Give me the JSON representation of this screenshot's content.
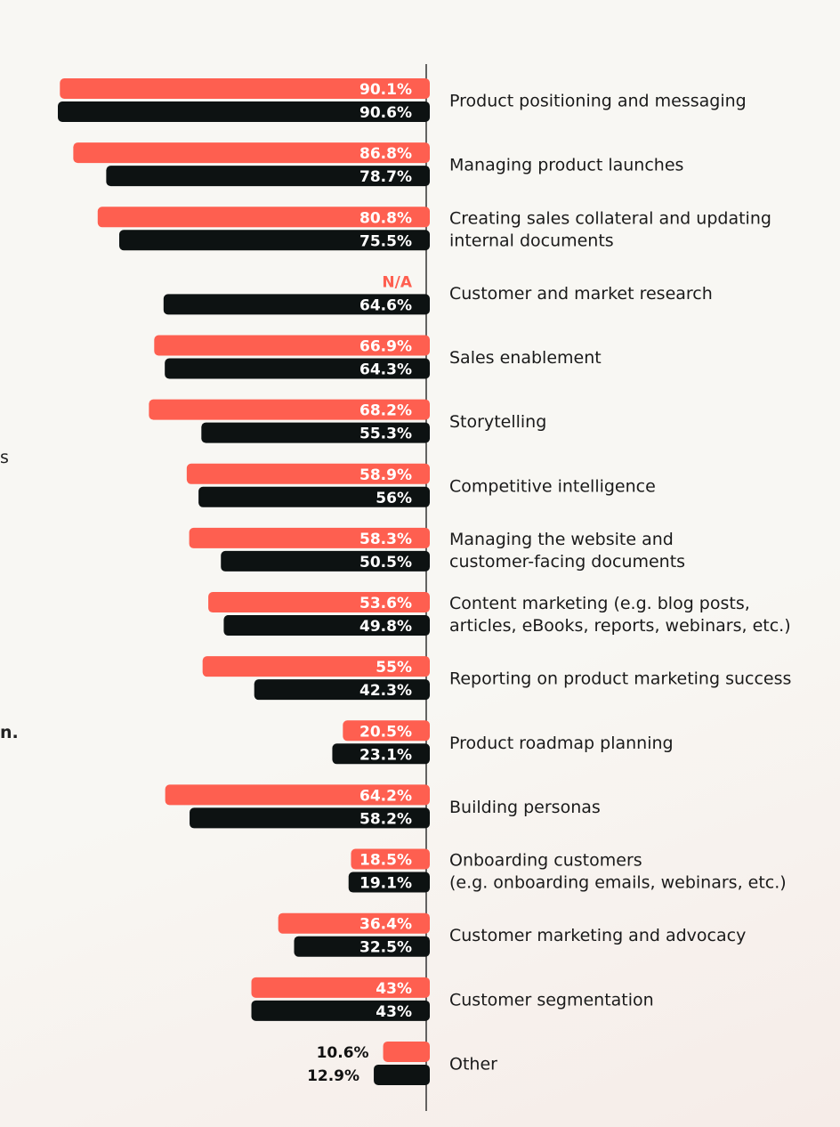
{
  "edge_fragments": [
    "s",
    "n."
  ],
  "chart_data": {
    "type": "bar",
    "orientation": "horizontal",
    "categories": [
      [
        "Product positioning and messaging"
      ],
      [
        "Managing product launches"
      ],
      [
        "Creating sales collateral and updating",
        "internal documents"
      ],
      [
        "Customer and market research"
      ],
      [
        "Sales enablement"
      ],
      [
        "Storytelling"
      ],
      [
        "Competitive intelligence"
      ],
      [
        "Managing the website and",
        "customer-facing documents"
      ],
      [
        "Content marketing (e.g. blog posts,",
        "articles, eBooks, reports, webinars, etc.)"
      ],
      [
        "Reporting on product marketing success"
      ],
      [
        "Product roadmap planning"
      ],
      [
        "Building personas"
      ],
      [
        "Onboarding customers",
        "(e.g. onboarding emails, webinars, etc.)"
      ],
      [
        "Customer marketing and advocacy"
      ],
      [
        "Customer segmentation"
      ],
      [
        "Other"
      ]
    ],
    "series": [
      {
        "color": "#fe5f50",
        "values": [
          90.1,
          86.8,
          80.8,
          null,
          66.9,
          68.2,
          58.9,
          58.3,
          53.6,
          55,
          20.5,
          64.2,
          18.5,
          36.4,
          43,
          10.6
        ],
        "labels": [
          "90.1%",
          "86.8%",
          "80.8%",
          "N/A",
          "66.9%",
          "68.2%",
          "58.9%",
          "58.3%",
          "53.6%",
          "55%",
          "20.5%",
          "64.2%",
          "18.5%",
          "36.4%",
          "43%",
          "10.6%"
        ]
      },
      {
        "color": "#0d1212",
        "values": [
          90.6,
          78.7,
          75.5,
          64.6,
          64.3,
          55.3,
          56,
          50.5,
          49.8,
          42.3,
          23.1,
          58.2,
          19.1,
          32.5,
          43,
          12.9
        ],
        "labels": [
          "90.6%",
          "78.7%",
          "75.5%",
          "64.6%",
          "64.3%",
          "55.3%",
          "56%",
          "50.5%",
          "49.8%",
          "42.3%",
          "23.1%",
          "58.2%",
          "19.1%",
          "32.5%",
          "43%",
          "12.9%"
        ]
      }
    ],
    "xlim": [
      0,
      100
    ],
    "grid": false,
    "legend": "none"
  }
}
